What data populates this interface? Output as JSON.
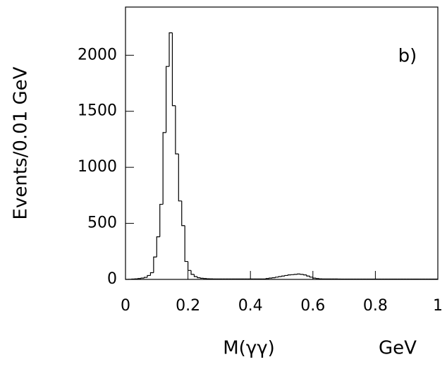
{
  "chart_data": {
    "type": "histogram",
    "ylabel": "Events/0.01 GeV",
    "xlabel": "M(γγ)",
    "xlabel_unit": "GeV",
    "annotation": "b)",
    "color": "#000000",
    "bins": [
      0,
      0.01,
      0.02,
      0.03,
      0.04,
      0.05,
      0.06,
      0.07,
      0.08,
      0.09,
      0.1,
      0.11,
      0.12,
      0.13,
      0.14,
      0.15,
      0.16,
      0.17,
      0.18,
      0.19,
      0.2,
      0.21,
      0.22,
      0.23,
      0.24,
      0.25,
      0.26,
      0.27,
      0.28,
      0.29,
      0.3,
      0.31,
      0.32,
      0.33,
      0.34,
      0.35,
      0.36,
      0.37,
      0.38,
      0.39,
      0.4,
      0.41,
      0.42,
      0.43,
      0.44,
      0.45,
      0.46,
      0.47,
      0.48,
      0.49,
      0.5,
      0.51,
      0.52,
      0.53,
      0.54,
      0.55,
      0.56,
      0.57,
      0.58,
      0.59,
      0.6,
      0.61,
      0.62,
      0.63,
      0.64,
      0.65,
      0.66,
      0.67,
      0.68,
      0.69,
      0.7,
      0.71,
      0.72,
      0.73,
      0.74,
      0.75,
      0.76,
      0.77,
      0.78,
      0.79,
      0.8,
      0.81,
      0.82,
      0.83,
      0.84,
      0.85,
      0.86,
      0.87,
      0.88,
      0.89,
      0.9,
      0.91,
      0.92,
      0.93,
      0.94,
      0.95,
      0.96,
      0.97,
      0.98,
      0.99,
      1
    ],
    "values": [
      0,
      1,
      3,
      5,
      8,
      12,
      18,
      35,
      60,
      200,
      380,
      670,
      1310,
      1900,
      2200,
      1550,
      1120,
      700,
      480,
      160,
      80,
      45,
      25,
      15,
      10,
      8,
      6,
      5,
      4,
      4,
      4,
      4,
      4,
      4,
      4,
      4,
      4,
      4,
      4,
      4,
      4,
      4,
      4,
      4,
      4,
      8,
      12,
      15,
      20,
      25,
      30,
      35,
      40,
      42,
      45,
      48,
      45,
      40,
      30,
      20,
      12,
      8,
      5,
      4,
      4,
      4,
      4,
      4,
      3,
      3,
      3,
      3,
      3,
      3,
      3,
      3,
      3,
      3,
      3,
      3,
      3,
      3,
      3,
      3,
      3,
      3,
      3,
      3,
      3,
      3,
      3,
      3,
      3,
      3,
      3,
      3,
      3,
      3,
      3,
      3
    ],
    "xlim": [
      0,
      1
    ],
    "ylim": [
      0,
      2430
    ],
    "xticks": [
      0,
      0.2,
      0.4,
      0.6,
      0.8,
      1
    ],
    "yticks": [
      0,
      500,
      1000,
      1500,
      2000
    ]
  }
}
